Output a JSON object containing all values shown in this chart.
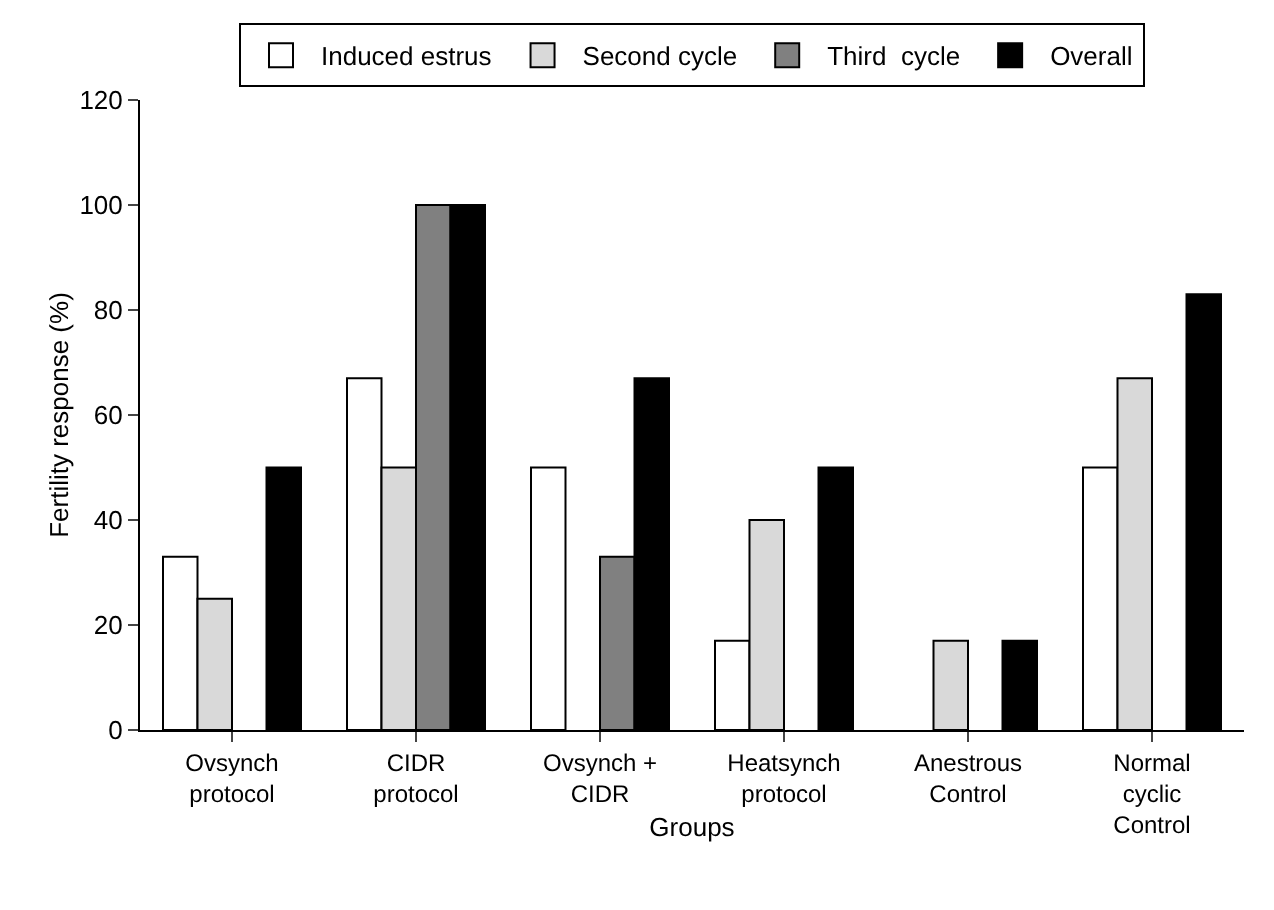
{
  "chart_data": {
    "type": "bar",
    "xlabel": "Groups",
    "ylabel": "Fertility response (%)",
    "categories": [
      "Ovsynch\nprotocol",
      "CIDR\nprotocol",
      "Ovsynch +\nCIDR",
      "Heatsynch\nprotocol",
      "Anestrous\nControl",
      "Normal\ncyclic\nControl"
    ],
    "series": [
      {
        "name": "Induced estrus",
        "color": "#ffffff",
        "values": [
          33,
          67,
          50,
          17,
          null,
          50
        ]
      },
      {
        "name": "Second cycle",
        "color": "#d9d9d9",
        "values": [
          25,
          50,
          null,
          40,
          17,
          67
        ]
      },
      {
        "name": "Third  cycle",
        "color": "#808080",
        "values": [
          null,
          100,
          33,
          null,
          null,
          null
        ]
      },
      {
        "name": "Overall",
        "color": "#000000",
        "values": [
          50,
          100,
          67,
          50,
          17,
          83
        ]
      }
    ],
    "ylim": [
      0,
      120
    ],
    "yticks": [
      0,
      20,
      40,
      60,
      80,
      100,
      120
    ],
    "grid": false,
    "legend": "top"
  }
}
